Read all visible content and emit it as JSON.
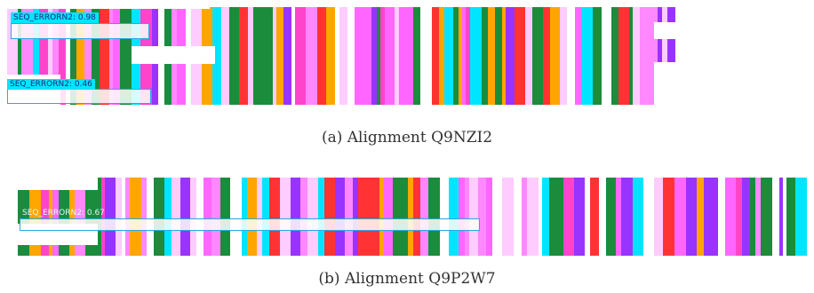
{
  "figure": {
    "palette": [
      "#ff66ff",
      "#ff88ff",
      "#ff44cc",
      "#1a8c3c",
      "#9933ff",
      "#00e5ff",
      "#ff3333",
      "#ffffff",
      "#ffa500",
      "#ffccff"
    ],
    "subfigure_a": {
      "caption": "(a) Alignment Q9NZI2",
      "detections": [
        {
          "label": "SEQ_ERRORN2: 0.98",
          "score": 0.98
        },
        {
          "label": "SEQ_ERRORN2: 0.46",
          "score": 0.46
        }
      ]
    },
    "subfigure_b": {
      "caption": "(b) Alignment Q9P2W7",
      "detections": [
        {
          "label": "SEQ_ERRORN2: 0.67",
          "score": 0.67
        }
      ]
    }
  }
}
